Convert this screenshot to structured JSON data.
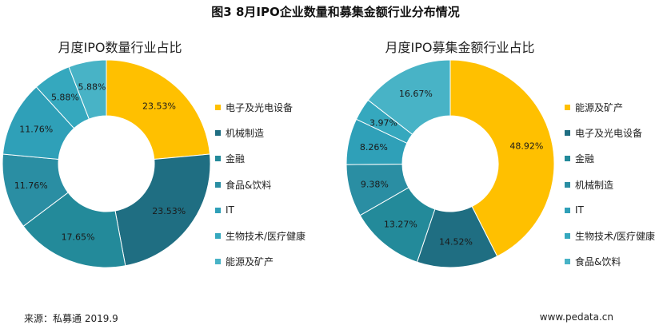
{
  "figure_title": "图3  8月IPO企业数量和募集金额行业分布情况",
  "footer": {
    "source": "来源：私募通  2019.9",
    "website": "www.pedata.cn"
  },
  "colors": [
    "#FFC000",
    "#1F6E82",
    "#238A9A",
    "#2A8EA3",
    "#2FA0B8",
    "#35A8BE",
    "#48B3C6"
  ],
  "chart_data": [
    {
      "type": "pie",
      "title": "月度IPO数量行业占比",
      "donut": true,
      "start_angle_deg": 0,
      "legend_position": "right",
      "categories": [
        "电子及光电设备",
        "机械制造",
        "金融",
        "食品&饮料",
        "IT",
        "生物技术/医疗健康",
        "能源及矿产"
      ],
      "values": [
        23.53,
        23.53,
        17.65,
        11.76,
        11.76,
        5.88,
        5.88
      ],
      "labels": [
        "23.53%",
        "23.53%",
        "17.65%",
        "11.76%",
        "11.76%",
        "5.88%",
        "5.88%"
      ],
      "colors": [
        "#FFC000",
        "#1F6E82",
        "#238A9A",
        "#2A8EA3",
        "#2FA0B8",
        "#35A8BE",
        "#48B3C6"
      ]
    },
    {
      "type": "pie",
      "title": "月度IPO募集金额行业占比",
      "donut": true,
      "start_angle_deg": 0,
      "legend_position": "right",
      "categories": [
        "能源及矿产",
        "电子及光电设备",
        "金融",
        "机械制造",
        "IT",
        "生物技术/医疗健康",
        "食品&饮料"
      ],
      "values": [
        48.92,
        14.52,
        13.27,
        9.38,
        8.26,
        3.97,
        16.67
      ],
      "labels": [
        "48.92%",
        "14.52%",
        "13.27%",
        "9.38%",
        "8.26%",
        "3.97%",
        "16.67%"
      ],
      "legend_colors": [
        "#FFC000",
        "#1F6E82",
        "#238A9A",
        "#2A8EA3",
        "#2FA0B8",
        "#35A8BE",
        "#48B3C6"
      ],
      "slice_colors": [
        "#FFC000",
        "#1F6E82",
        "#238A9A",
        "#2A8EA3",
        "#2FA0B8",
        "#35A8BE",
        "#48B3C6"
      ]
    }
  ]
}
